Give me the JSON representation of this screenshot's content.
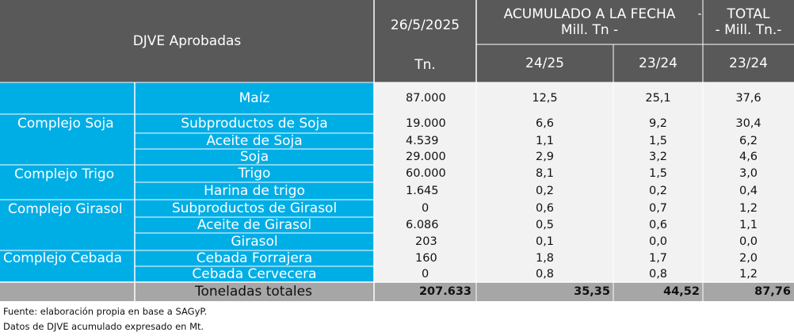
{
  "header": {
    "title": "DJVE Aprobadas",
    "date": "26/5/2025",
    "unit_tn": "Tn.",
    "acumulado_line1": "ACUMULADO A LA FECHA",
    "acumulado_line2": "Mill. Tn -",
    "acumulado_dash": "-",
    "total_line1": "TOTAL",
    "total_line2": "- Mill. Tn.-",
    "col_2425": "24/25",
    "col_2324": "23/24",
    "col_total_2324": "23/24"
  },
  "groups": [
    "Complejo Soja",
    "Complejo Trigo",
    "Complejo Girasol",
    "Complejo Cebada"
  ],
  "rows": [
    {
      "product": "Maíz",
      "tn": "87.000",
      "acc_2425": "12,5",
      "acc_2324": "25,1",
      "total": "37,6"
    },
    {
      "product": "Subproductos de Soja",
      "tn": "19.000",
      "acc_2425": "6,6",
      "acc_2324": "9,2",
      "total": "30,4"
    },
    {
      "product": "Aceite de Soja",
      "tn": "4.539",
      "acc_2425": "1,1",
      "acc_2324": "1,5",
      "total": "6,2"
    },
    {
      "product": "Soja",
      "tn": "29.000",
      "acc_2425": "2,9",
      "acc_2324": "3,2",
      "total": "4,6"
    },
    {
      "product": "Trigo",
      "tn": "60.000",
      "acc_2425": "8,1",
      "acc_2324": "1,5",
      "total": "3,0"
    },
    {
      "product": "Harina de trigo",
      "tn": "1.645",
      "acc_2425": "0,2",
      "acc_2324": "0,2",
      "total": "0,4"
    },
    {
      "product": "Subproductos de Girasol",
      "tn": "0",
      "acc_2425": "0,6",
      "acc_2324": "0,7",
      "total": "1,2"
    },
    {
      "product": "Aceite de Girasol",
      "tn": "6.086",
      "acc_2425": "0,5",
      "acc_2324": "0,6",
      "total": "1,1"
    },
    {
      "product": "Girasol",
      "tn": "203",
      "acc_2425": "0,1",
      "acc_2324": "0,0",
      "total": "0,0"
    },
    {
      "product": "Cebada Forrajera",
      "tn": "160",
      "acc_2425": "1,8",
      "acc_2324": "1,7",
      "total": "2,0"
    },
    {
      "product": "Cebada Cervecera",
      "tn": "0",
      "acc_2425": "0,8",
      "acc_2324": "0,8",
      "total": "1,2"
    }
  ],
  "totals": {
    "label": "Toneladas totales",
    "tn": "207.633",
    "acc_2425": "35,35",
    "acc_2324": "44,52",
    "total": "87,76"
  },
  "footnotes": [
    "Fuente: elaboración propia en base a SAGyP.",
    "Datos de DJVE acumulado expresado en Mt."
  ],
  "colors": {
    "header_bg": "#595959",
    "label_bg": "#00aee6",
    "number_bg": "#f2f2f2",
    "total_bg": "#a6a6a6"
  }
}
